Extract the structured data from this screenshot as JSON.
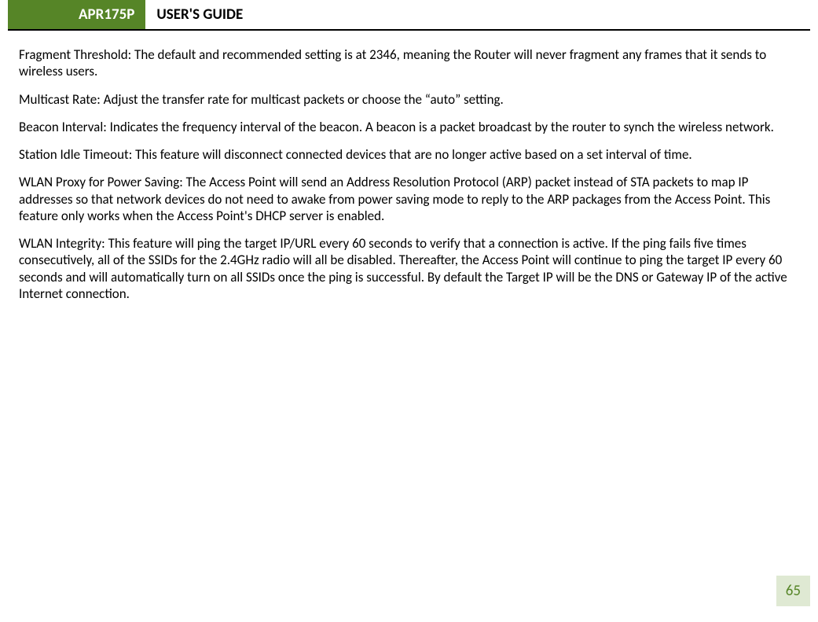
{
  "header": {
    "badge": "APR175P",
    "title": "USER'S GUIDE"
  },
  "paragraphs": {
    "p1": "Fragment Threshold: The default and recommended setting is at 2346, meaning the Router will never fragment any frames that it sends to wireless users.",
    "p2": "Multicast Rate: Adjust the transfer rate for multicast packets or choose the “auto” setting.",
    "p3": "Beacon Interval: Indicates the frequency interval of the beacon. A beacon is a packet broadcast by the router to synch the wireless network.",
    "p4": "Station Idle Timeout: This feature will disconnect connected devices that are no longer active based on a set interval of time.",
    "p5": "WLAN Proxy for Power Saving: The Access Point will send an Address Resolution Protocol (ARP) packet instead of STA packets to map IP addresses so that network devices do not need to awake from power saving mode to reply to the ARP packages from the Access Point.  This feature only works when the Access Point's DHCP server is enabled.",
    "p6": "WLAN Integrity:  This feature will ping the target IP/URL every 60 seconds to verify that a connection is active.  If the ping fails five times consecutively, all of the SSIDs for the 2.4GHz radio will all be disabled.  Thereafter, the Access Point will continue to ping the target IP every 60 seconds and will automatically turn on all SSIDs once the ping is successful.  By default the Target IP will be the DNS or Gateway IP of the active Internet connection."
  },
  "page_number": "65",
  "colors": {
    "accent_green": "#568527",
    "page_box_bg": "#dfe9d3",
    "text": "#000000",
    "bg": "#ffffff"
  }
}
